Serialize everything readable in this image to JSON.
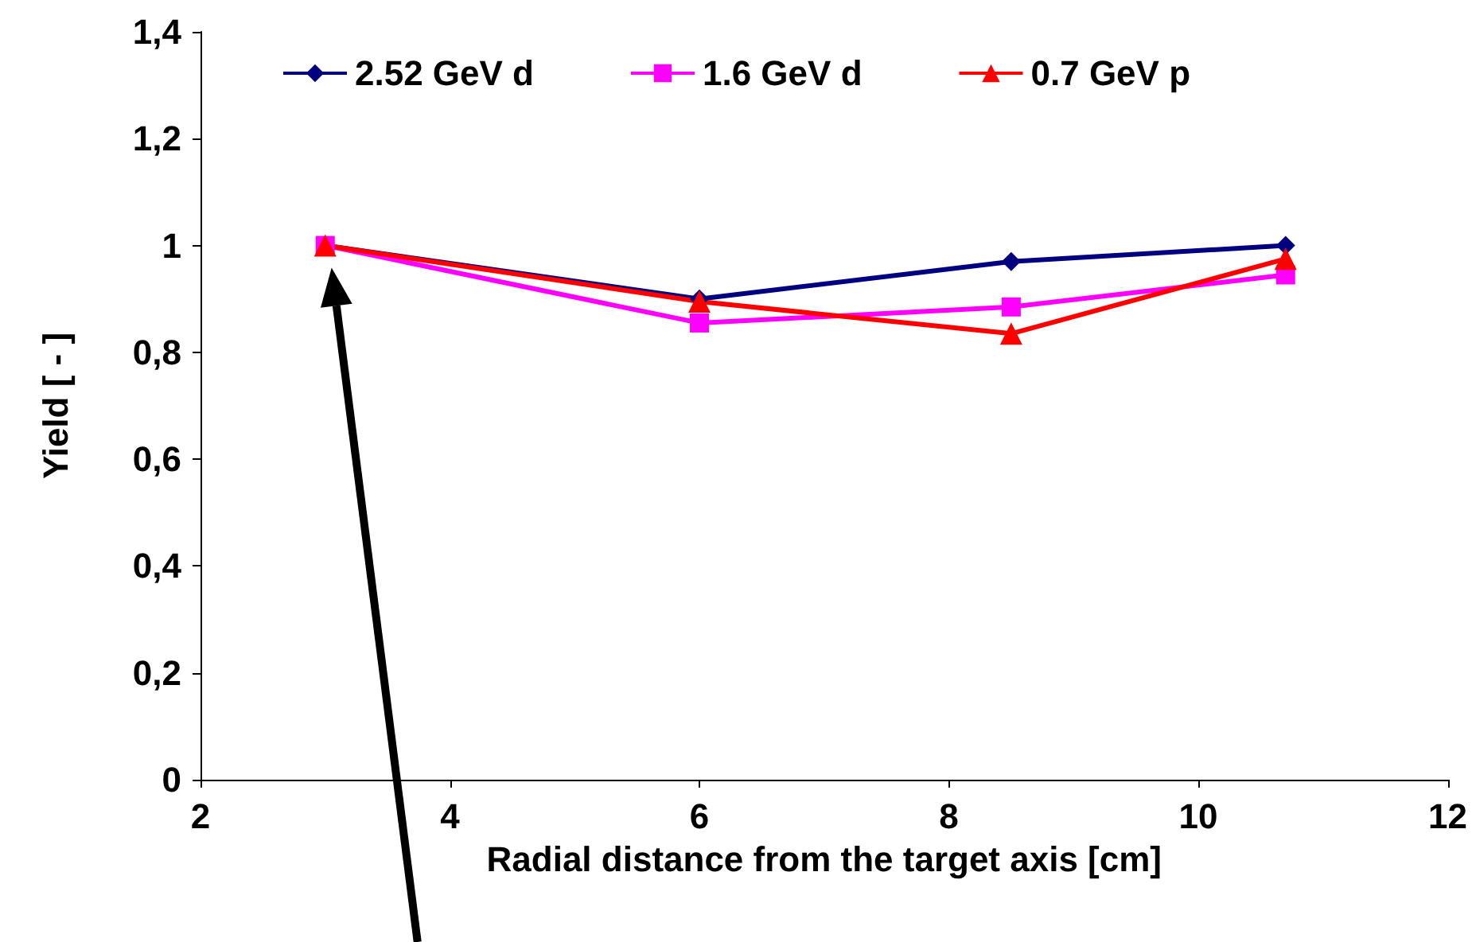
{
  "chart_data": {
    "type": "line",
    "xlabel": "Radial distance from the target axis [cm]",
    "ylabel": "Yield [ - ]",
    "series": [
      {
        "name": "2.52 GeV d",
        "color": "#000080",
        "marker": "diamond",
        "x": [
          3,
          6,
          8.5,
          10.7
        ],
        "values": [
          1.0,
          0.9,
          0.97,
          1.0
        ]
      },
      {
        "name": "1.6 GeV d",
        "color": "#ff00ff",
        "marker": "square",
        "x": [
          3,
          6,
          8.5,
          10.7
        ],
        "values": [
          1.0,
          0.855,
          0.885,
          0.945
        ]
      },
      {
        "name": "0.7 GeV p",
        "color": "#ff0000",
        "marker": "triangle",
        "x": [
          3,
          6,
          8.5,
          10.7
        ],
        "values": [
          1.0,
          0.895,
          0.835,
          0.975
        ]
      }
    ],
    "xlim": [
      2,
      12
    ],
    "xticks": [
      2,
      4,
      6,
      8,
      10,
      12
    ],
    "ylim": [
      0,
      1.4
    ],
    "yticks": [
      0,
      {
        "value": 0.2,
        "label": "0,2"
      },
      {
        "value": 0.4,
        "label": "0,4"
      },
      {
        "value": 0.6,
        "label": "0,6"
      },
      {
        "value": 0.8,
        "label": "0,8"
      },
      1,
      {
        "value": 1.2,
        "label": "1,2"
      },
      {
        "value": 1.4,
        "label": "1,4"
      }
    ],
    "grid": false,
    "legend": "top"
  }
}
